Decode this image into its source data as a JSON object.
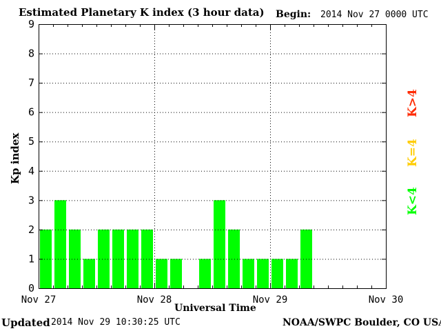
{
  "header": {
    "title": "Estimated Planetary K index (3 hour data)",
    "begin_label": "Begin:",
    "begin_value": "2014 Nov 27 0000 UTC"
  },
  "footer": {
    "updated_label": "Updated",
    "updated_value": "2014 Nov 29 10:30:25 UTC",
    "credit": "NOAA/SWPC Boulder, CO USA"
  },
  "legend": {
    "high": {
      "label": "K>4",
      "color": "#ff2a00"
    },
    "mid": {
      "label": "K=4",
      "color": "#ffcc00"
    },
    "low": {
      "label": "K<4",
      "color": "#00ff00"
    }
  },
  "chart_data": {
    "type": "bar",
    "title": "Estimated Planetary K index (3 hour data)",
    "xlabel": "Universal Time",
    "ylabel": "Kp index",
    "ylim": [
      0,
      9
    ],
    "yticks": [
      0,
      1,
      2,
      3,
      4,
      5,
      6,
      7,
      8,
      9
    ],
    "x_tick_labels": [
      "Nov 27",
      "Nov 28",
      "Nov 29",
      "Nov 30"
    ],
    "slots_per_day": 8,
    "days": 3,
    "grid": true,
    "bar_color": "#00ff00",
    "values": [
      2,
      3,
      2,
      1,
      2,
      2,
      2,
      2,
      1,
      1,
      null,
      1,
      3,
      2,
      1,
      1,
      1,
      1,
      2
    ]
  }
}
